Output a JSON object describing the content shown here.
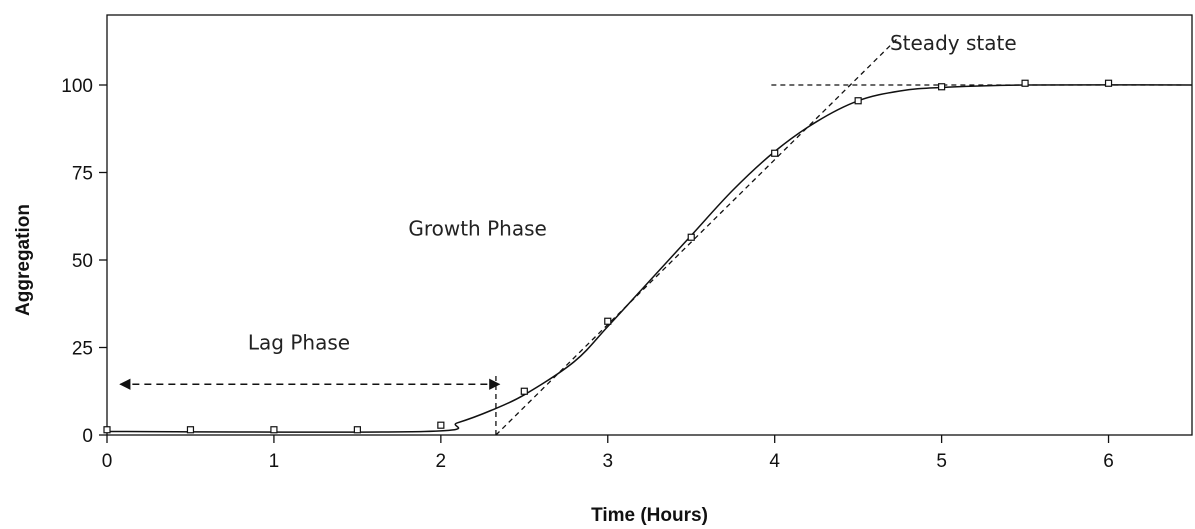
{
  "chart_data": {
    "type": "scatter",
    "xlabel": "Time (Hours)",
    "ylabel": "Aggregation",
    "xlim": [
      0,
      6.5
    ],
    "ylim": [
      0,
      120
    ],
    "x_ticks": [
      "0",
      "1",
      "2",
      "3",
      "4",
      "5",
      "6"
    ],
    "y_ticks": [
      "0",
      "25",
      "50",
      "75",
      "100"
    ],
    "grid": false,
    "series": [
      {
        "points": [
          [
            0,
            1.5
          ],
          [
            0.5,
            1.5
          ],
          [
            1,
            1.5
          ],
          [
            1.5,
            1.5
          ],
          [
            2,
            2.8
          ],
          [
            2.5,
            12.5
          ],
          [
            3,
            32.5
          ],
          [
            3.5,
            56.5
          ],
          [
            4,
            80.5
          ],
          [
            4.5,
            95.5
          ],
          [
            5,
            99.5
          ],
          [
            5.5,
            100.5
          ],
          [
            6,
            100.5
          ]
        ]
      }
    ],
    "fit_curve": [
      [
        0,
        1
      ],
      [
        1.9,
        1
      ],
      [
        2.1,
        3.5
      ],
      [
        2.3,
        7
      ],
      [
        2.5,
        11.5
      ],
      [
        2.8,
        21
      ],
      [
        3,
        31
      ],
      [
        3.25,
        44
      ],
      [
        3.5,
        57
      ],
      [
        3.75,
        70
      ],
      [
        4,
        81
      ],
      [
        4.25,
        89.5
      ],
      [
        4.5,
        95.5
      ],
      [
        4.75,
        98.3
      ],
      [
        5,
        99.3
      ],
      [
        5.5,
        100
      ],
      [
        6.5,
        100
      ]
    ],
    "growth_tangent": [
      [
        2.33,
        0
      ],
      [
        4.75,
        114
      ]
    ],
    "steady_line": [
      [
        3.98,
        100
      ],
      [
        6.45,
        100
      ]
    ],
    "lag_end_line": [
      [
        2.33,
        0
      ],
      [
        2.33,
        18
      ]
    ],
    "lag_arrow": {
      "from": [
        0.08,
        14.5
      ],
      "to": [
        2.35,
        14.5
      ]
    },
    "annotations": [
      {
        "text": "Lag Phase",
        "x": 1.15,
        "y": 24.5
      },
      {
        "text": "Growth Phase",
        "x": 2.22,
        "y": 57
      },
      {
        "text": "Steady state",
        "x": 5.07,
        "y": 110
      }
    ]
  }
}
